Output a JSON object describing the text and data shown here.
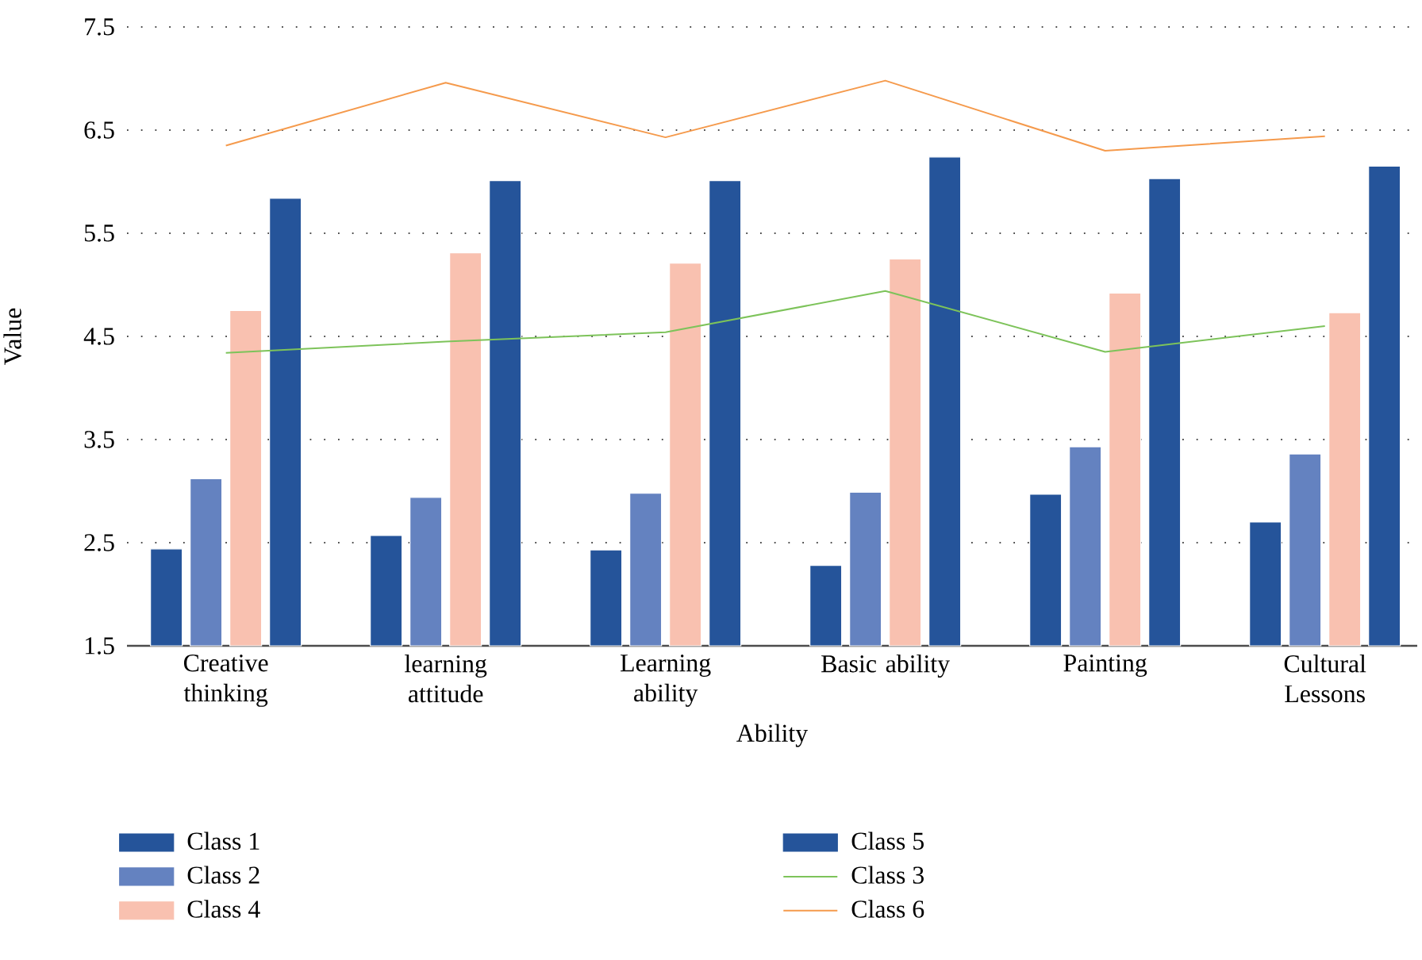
{
  "chart_data": {
    "type": "bar",
    "xlabel": "Ability",
    "ylabel": "Value",
    "categories": [
      "Creative thinking",
      "learning attitude",
      "Learning ability",
      "Basic ability",
      "Painting",
      "Cultural Lessons"
    ],
    "series": [
      {
        "name": "Class 1",
        "color": "#25549a",
        "values": [
          2.44,
          2.57,
          2.43,
          2.28,
          2.97,
          2.7
        ]
      },
      {
        "name": "Class 2",
        "color": "#6482c0",
        "values": [
          3.12,
          2.94,
          2.98,
          2.99,
          3.43,
          3.36
        ]
      },
      {
        "name": "Class 4",
        "color": "#f9c1b0",
        "values": [
          4.75,
          5.31,
          5.21,
          5.25,
          4.92,
          4.73
        ]
      },
      {
        "name": "Class 5",
        "color": "#25549a",
        "values": [
          5.84,
          6.01,
          6.01,
          6.24,
          6.03,
          6.15
        ]
      },
      {
        "name": "Class 3",
        "color": "#7dc35a",
        "type": "line",
        "values": [
          4.34,
          4.45,
          4.54,
          4.94,
          4.35,
          4.6
        ]
      },
      {
        "name": "Class 6",
        "color": "#f59a4c",
        "type": "line",
        "values": [
          6.35,
          6.96,
          6.43,
          6.98,
          6.3,
          6.44
        ]
      }
    ],
    "ylim": [
      1.5,
      7.5
    ],
    "yticks": [
      1.5,
      2.5,
      3.5,
      4.5,
      5.5,
      6.5,
      7.5
    ],
    "grid": "y",
    "legend": "bottom"
  }
}
